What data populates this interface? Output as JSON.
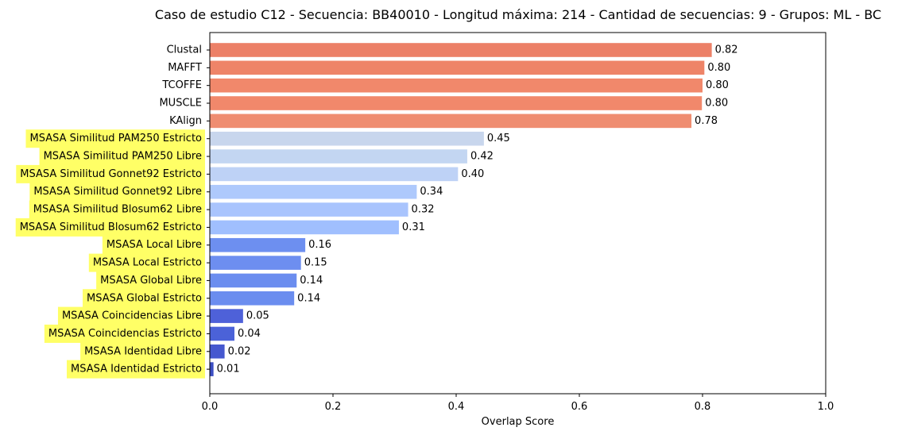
{
  "chart_data": {
    "type": "bar",
    "orientation": "horizontal",
    "title": "Caso de estudio C12 - Secuencia: BB40010 - Longitud máxima: 214 - Cantidad de secuencias: 9 - Grupos: ML - BC",
    "xlabel": "Overlap Score",
    "ylabel": "",
    "xlim": [
      0.0,
      1.0
    ],
    "xticks": [
      "0.0",
      "0.2",
      "0.4",
      "0.6",
      "0.8",
      "1.0"
    ],
    "grid": false,
    "categories": [
      "Clustal",
      "MAFFT",
      "TCOFFE",
      "MUSCLE",
      "KAlign",
      "MSASA Similitud PAM250 Estricto",
      "MSASA Similitud PAM250 Libre",
      "MSASA Similitud Gonnet92 Estricto",
      "MSASA Similitud Gonnet92 Libre",
      "MSASA Similitud Blosum62 Libre",
      "MSASA Similitud Blosum62 Estricto",
      "MSASA Local Libre",
      "MSASA Local Estricto",
      "MSASA Global Libre",
      "MSASA Global Estricto",
      "MSASA Coincidencias Libre",
      "MSASA Coincidencias Estricto",
      "MSASA Identidad Libre",
      "MSASA Identidad Estricto"
    ],
    "values": [
      0.815,
      0.803,
      0.8,
      0.799,
      0.782,
      0.445,
      0.418,
      0.403,
      0.336,
      0.322,
      0.307,
      0.155,
      0.148,
      0.141,
      0.137,
      0.054,
      0.04,
      0.024,
      0.006
    ],
    "value_labels": [
      "0.82",
      "0.80",
      "0.80",
      "0.80",
      "0.78",
      "0.45",
      "0.42",
      "0.40",
      "0.34",
      "0.32",
      "0.31",
      "0.16",
      "0.15",
      "0.14",
      "0.14",
      "0.05",
      "0.04",
      "0.02",
      "0.01"
    ],
    "bar_colors": [
      "#ec8067",
      "#ee8468",
      "#f1886b",
      "#f1886b",
      "#ef8d71",
      "#c8d6ed",
      "#c3d6f2",
      "#bed2f6",
      "#aec9fc",
      "#a9c4fd",
      "#a0bffe",
      "#6d8ff0",
      "#6d8ef0",
      "#6b8def",
      "#6b8def",
      "#4e61d9",
      "#4b62d8",
      "#4658cf",
      "#3c4ec2"
    ],
    "highlighted_labels": [
      false,
      false,
      false,
      false,
      false,
      true,
      true,
      true,
      true,
      true,
      true,
      true,
      true,
      true,
      true,
      true,
      true,
      true,
      true
    ],
    "label_highlight_color": "#ffff66"
  }
}
